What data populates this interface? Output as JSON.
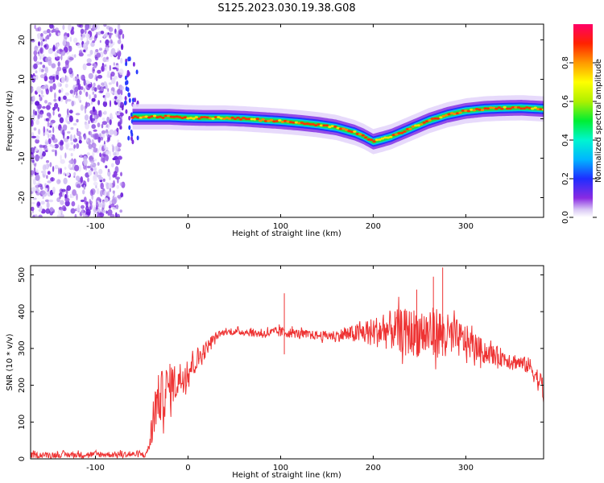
{
  "title": "S125.2023.030.19.38.G08",
  "chart_data": [
    {
      "type": "heatmap",
      "xlabel": "Height of straight line (km)",
      "ylabel": "Frequency (Hz)",
      "xlim": [
        -170,
        384
      ],
      "ylim": [
        -25,
        24
      ],
      "xticks": [
        -100,
        0,
        100,
        200,
        300
      ],
      "yticks": [
        -20,
        -10,
        0,
        10,
        20
      ],
      "colorbar": {
        "label": "Normalized spectral amplitude",
        "range": [
          0,
          1
        ],
        "ticks": [
          "0.0",
          "0.2",
          "0.4",
          "0.6",
          "0.8"
        ]
      },
      "noise_region_x": [
        -170,
        -70
      ],
      "ridge": {
        "x": [
          -60,
          -40,
          -20,
          0,
          20,
          40,
          60,
          80,
          100,
          120,
          140,
          160,
          180,
          190,
          200,
          210,
          220,
          240,
          260,
          280,
          300,
          320,
          340,
          360,
          384
        ],
        "frequency": [
          0.5,
          0.5,
          0.5,
          0.3,
          0.2,
          0.2,
          0.0,
          -0.3,
          -0.6,
          -1.0,
          -1.5,
          -2.2,
          -3.5,
          -4.5,
          -5.8,
          -5.2,
          -4.5,
          -2.5,
          -0.5,
          1.0,
          2.0,
          2.5,
          2.7,
          2.8,
          2.5
        ]
      }
    },
    {
      "type": "line",
      "xlabel": "Height of straight line (km)",
      "ylabel": "SNR (10 * v/v)",
      "xlim": [
        -170,
        384
      ],
      "ylim": [
        0,
        525
      ],
      "xticks": [
        -100,
        0,
        100,
        200,
        300
      ],
      "yticks": [
        0,
        100,
        200,
        300,
        400,
        500
      ],
      "color": "#ee3333",
      "envelope": {
        "x": [
          -170,
          -100,
          -45,
          -40,
          -35,
          -25,
          -20,
          -15,
          -10,
          -5,
          0,
          5,
          10,
          15,
          20,
          25,
          30,
          35,
          40,
          60,
          80,
          100,
          120,
          140,
          160,
          180,
          200,
          220,
          240,
          260,
          270,
          280,
          300,
          320,
          340,
          360,
          370,
          384
        ],
        "snr": [
          10,
          12,
          12,
          60,
          150,
          180,
          200,
          205,
          215,
          225,
          240,
          260,
          270,
          285,
          300,
          320,
          330,
          340,
          345,
          345,
          340,
          345,
          340,
          335,
          335,
          340,
          345,
          350,
          345,
          340,
          345,
          335,
          320,
          290,
          275,
          260,
          250,
          190
        ],
        "noise_amplitude": [
          8,
          8,
          8,
          45,
          70,
          70,
          60,
          55,
          50,
          45,
          40,
          40,
          35,
          30,
          20,
          15,
          10,
          8,
          8,
          10,
          12,
          15,
          12,
          12,
          15,
          25,
          40,
          55,
          65,
          70,
          70,
          60,
          45,
          30,
          25,
          20,
          25,
          35
        ]
      },
      "spikes": [
        {
          "x": 275,
          "snr": 520
        },
        {
          "x": 265,
          "snr": 495
        },
        {
          "x": 104,
          "snr": 450
        },
        {
          "x": 247,
          "snr": 460
        }
      ]
    }
  ]
}
